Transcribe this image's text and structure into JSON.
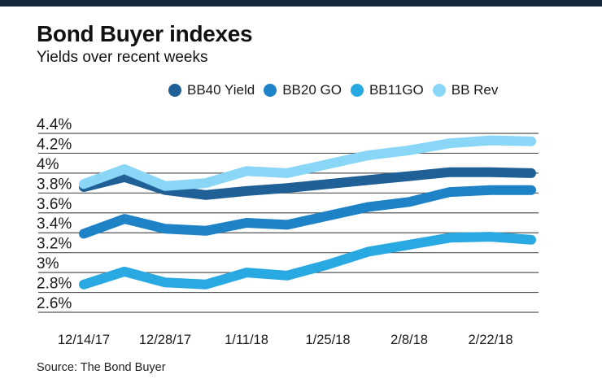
{
  "chart_data": {
    "type": "line",
    "title": "Bond Buyer indexes",
    "subtitle": "Yields over recent weeks",
    "x": [
      "12/14/17",
      "12/21/17",
      "12/28/17",
      "1/4/18",
      "1/11/18",
      "1/18/18",
      "1/25/18",
      "2/1/18",
      "2/8/18",
      "2/15/18",
      "2/22/18",
      "3/1/18"
    ],
    "x_tick_labels": [
      "12/14/17",
      "12/28/17",
      "1/11/18",
      "1/25/18",
      "2/8/18",
      "2/22/18"
    ],
    "x_tick_indices": [
      0,
      2,
      4,
      6,
      8,
      10
    ],
    "y_tick_labels": [
      "4.4%",
      "4.2%",
      "4%",
      "3.8%",
      "3.6%",
      "3.4%",
      "3.2%",
      "3%",
      "2.8%",
      "2.6%"
    ],
    "y_tick_values": [
      4.4,
      4.2,
      4.0,
      3.8,
      3.6,
      3.4,
      3.2,
      3.0,
      2.8,
      2.6
    ],
    "ylim": [
      2.6,
      4.4
    ],
    "grid": true,
    "legend_position": "top-center",
    "series": [
      {
        "name": "BB40 Yield",
        "color": "#1f6096",
        "values": [
          3.86,
          3.96,
          3.83,
          3.78,
          3.82,
          3.85,
          3.89,
          3.93,
          3.97,
          4.01,
          4.01,
          4.0
        ]
      },
      {
        "name": "BB20 GO",
        "color": "#1d82c6",
        "values": [
          3.39,
          3.54,
          3.44,
          3.42,
          3.5,
          3.48,
          3.57,
          3.66,
          3.71,
          3.81,
          3.83,
          3.83
        ]
      },
      {
        "name": "BB11GO",
        "color": "#29a9e1",
        "values": [
          2.88,
          3.01,
          2.9,
          2.88,
          3.0,
          2.97,
          3.08,
          3.21,
          3.28,
          3.35,
          3.36,
          3.33
        ]
      },
      {
        "name": "BB Rev",
        "color": "#8ad6f7",
        "values": [
          3.89,
          4.04,
          3.87,
          3.9,
          4.02,
          4.0,
          4.09,
          4.18,
          4.23,
          4.3,
          4.33,
          4.32
        ]
      }
    ],
    "gridline_color": "#555555",
    "accent_bar_color": "#16283a"
  },
  "footer": {
    "source": "Source: The Bond Buyer"
  }
}
